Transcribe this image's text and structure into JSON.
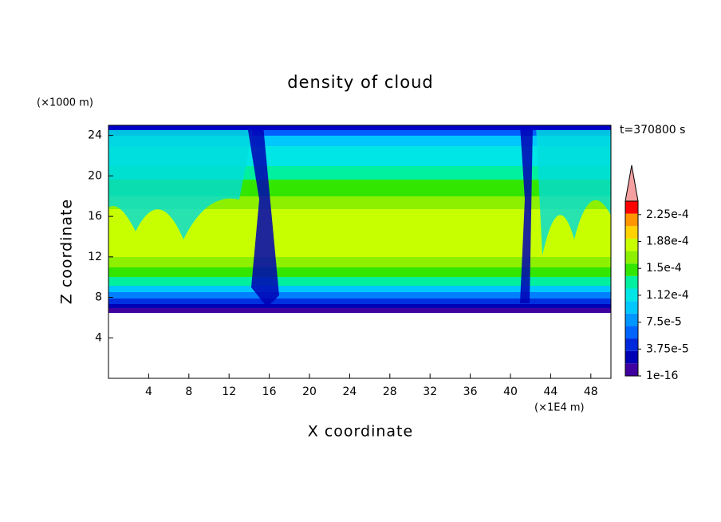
{
  "chart_data": {
    "type": "contour",
    "title": "density of cloud",
    "xlabel": "X coordinate",
    "ylabel": "Z coordinate",
    "xunit": "(×1E4 m)",
    "yunit": "(×1000 m)",
    "annotation": "t=370800 s",
    "xlim": [
      0,
      50
    ],
    "xticks": [
      4,
      8,
      12,
      16,
      20,
      24,
      28,
      32,
      36,
      40,
      44,
      48
    ],
    "ylim": [
      0,
      25
    ],
    "yticks": [
      4,
      8,
      12,
      16,
      20,
      24
    ],
    "colorbar": {
      "lim": [
        0,
        0.00024375
      ],
      "ticks": [
        1e-16,
        {
          "value": 3.75e-05,
          "label": "3.75e-5"
        },
        {
          "value": 7.5e-05,
          "label": "7.5e-5"
        },
        {
          "value": 0.0001125,
          "label": "1.12e-4"
        },
        {
          "value": 0.00015,
          "label": "1.5e-4"
        },
        {
          "value": 0.0001875,
          "label": "1.88e-4"
        },
        {
          "value": 0.000225,
          "label": "2.25e-4"
        }
      ],
      "colors": [
        "#4000a0",
        "#0000b4",
        "#0028dc",
        "#0064ff",
        "#0096ff",
        "#00c8ff",
        "#00e6e6",
        "#00f0a0",
        "#32e600",
        "#8cf000",
        "#c8ff00",
        "#ffd200",
        "#ff9600",
        "#ff0000"
      ],
      "extend_color": "#f4a0a0"
    }
  }
}
